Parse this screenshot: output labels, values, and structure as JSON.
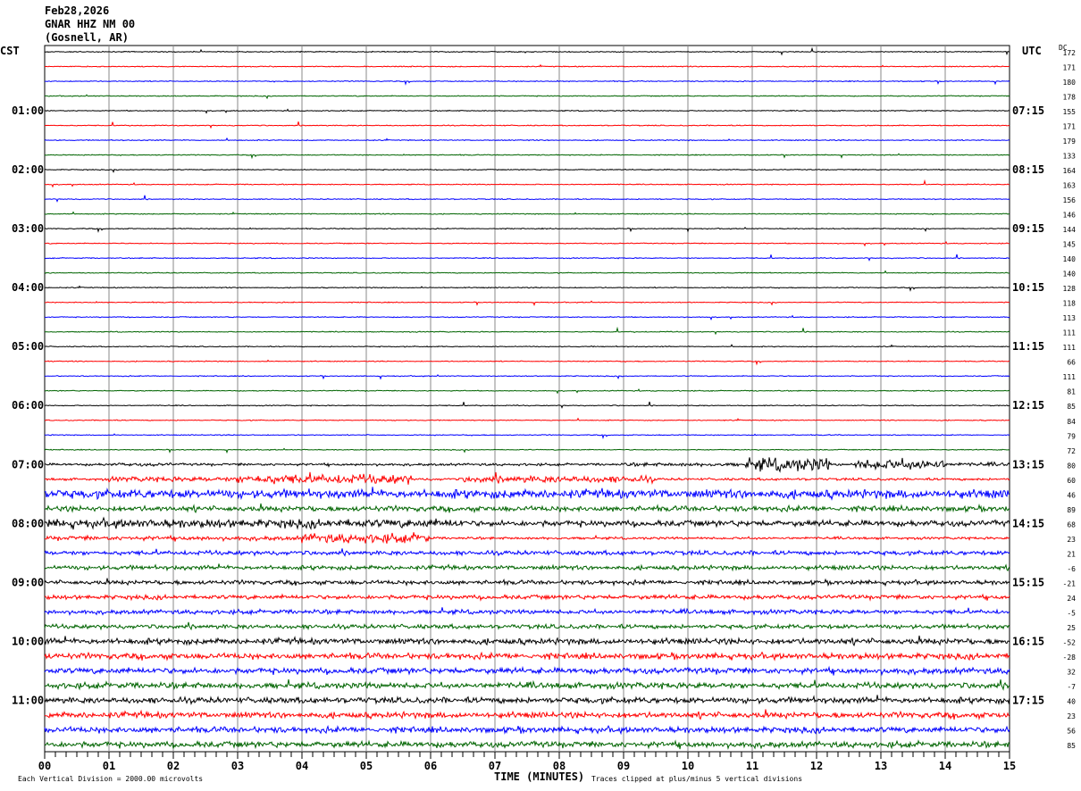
{
  "header": {
    "date": "Feb28,2026",
    "station": "GNAR HHZ NM 00",
    "location": "(Gosnell, AR)"
  },
  "chart_data": {
    "type": "line",
    "subtype": "helicorder",
    "left_timezone": "CST",
    "right_timezone": "UTC",
    "dc_header": "DC",
    "xlabel": "TIME (MINUTES)",
    "xlim": [
      0,
      15
    ],
    "x_ticks": [
      "00",
      "01",
      "02",
      "03",
      "04",
      "05",
      "06",
      "07",
      "08",
      "09",
      "10",
      "11",
      "12",
      "13",
      "14",
      "15"
    ],
    "left_hour_labels": [
      "",
      "01:00",
      "02:00",
      "03:00",
      "04:00",
      "05:00",
      "06:00",
      "07:00",
      "08:00",
      "09:00",
      "10:00",
      "11:00"
    ],
    "right_hour_labels": [
      "",
      "07:15",
      "08:15",
      "09:15",
      "10:15",
      "11:15",
      "12:15",
      "13:15",
      "14:15",
      "15:15",
      "16:15",
      "17:15"
    ],
    "rows_per_hour": 4,
    "minutes_per_row": 15,
    "trace_colors": [
      "#000000",
      "#ff0000",
      "#0000ff",
      "#006400"
    ],
    "dc_offsets": [
      "172",
      "171",
      "180",
      "178",
      "155",
      "171",
      "179",
      "133",
      "164",
      "163",
      "156",
      "146",
      "144",
      "145",
      "140",
      "140",
      "128",
      "118",
      "113",
      "111",
      "111",
      "66",
      "111",
      "81",
      "85",
      "84",
      "79",
      "72",
      "80",
      "60",
      "46",
      "89",
      "68",
      "23",
      "21",
      "-6",
      "-21",
      "24",
      "-5",
      "25",
      "-52",
      "-28",
      "32",
      "-7",
      "40",
      "23",
      "56",
      "85"
    ],
    "grid": true,
    "footer_left": "Each Vertical Division = 2000.00 microvolts",
    "footer_right": "Traces clipped at plus/minus 5 vertical divisions"
  }
}
